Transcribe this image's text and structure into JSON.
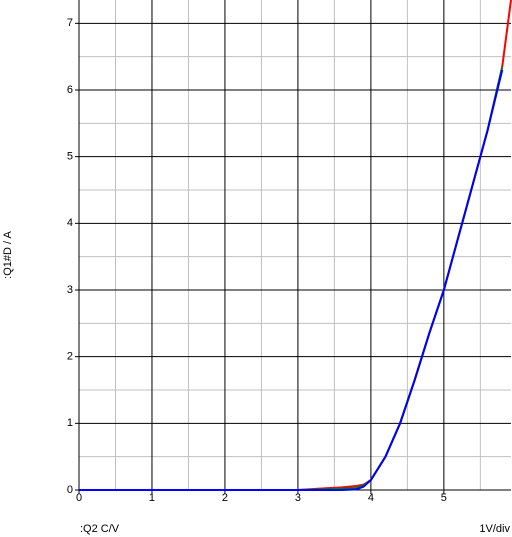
{
  "chart_data": {
    "type": "line",
    "y_label": ":Q1#D / A",
    "x_label": ":Q2  C/V",
    "x_scale_label": "1V/div",
    "x": [
      0,
      1,
      2,
      3,
      3.3,
      3.6,
      3.8,
      3.9,
      4,
      4.2,
      4.4,
      4.6,
      4.8,
      5,
      5.2,
      5.4,
      5.6,
      5.8,
      5.92
    ],
    "series": [
      {
        "color": "#ff0000",
        "values": [
          0,
          0,
          0,
          0,
          0.02,
          0.04,
          0.06,
          0.08,
          0.15,
          0.5,
          1.0,
          1.65,
          2.35,
          3.0,
          3.8,
          4.6,
          5.4,
          6.35,
          7.35
        ]
      },
      {
        "color": "#008000",
        "values": [
          0,
          0,
          0,
          0,
          0.01,
          0.02,
          0.03,
          0.07,
          0.15,
          0.5,
          1.0,
          1.65,
          2.35,
          3.0,
          3.8,
          4.6,
          5.4,
          6.35,
          null
        ]
      },
      {
        "color": "#0000ff",
        "values": [
          0,
          0,
          0,
          0,
          0,
          0,
          0.01,
          0.05,
          0.15,
          0.5,
          1.0,
          1.65,
          2.35,
          3.0,
          3.8,
          4.6,
          5.4,
          6.3,
          null
        ]
      }
    ],
    "xlim": [
      0,
      5.92
    ],
    "ylim": [
      0,
      7.35
    ],
    "xticks": [
      0,
      1,
      2,
      3,
      4,
      5
    ],
    "yticks": [
      0,
      1,
      2,
      3,
      4,
      5,
      6,
      7
    ],
    "grid": true
  }
}
